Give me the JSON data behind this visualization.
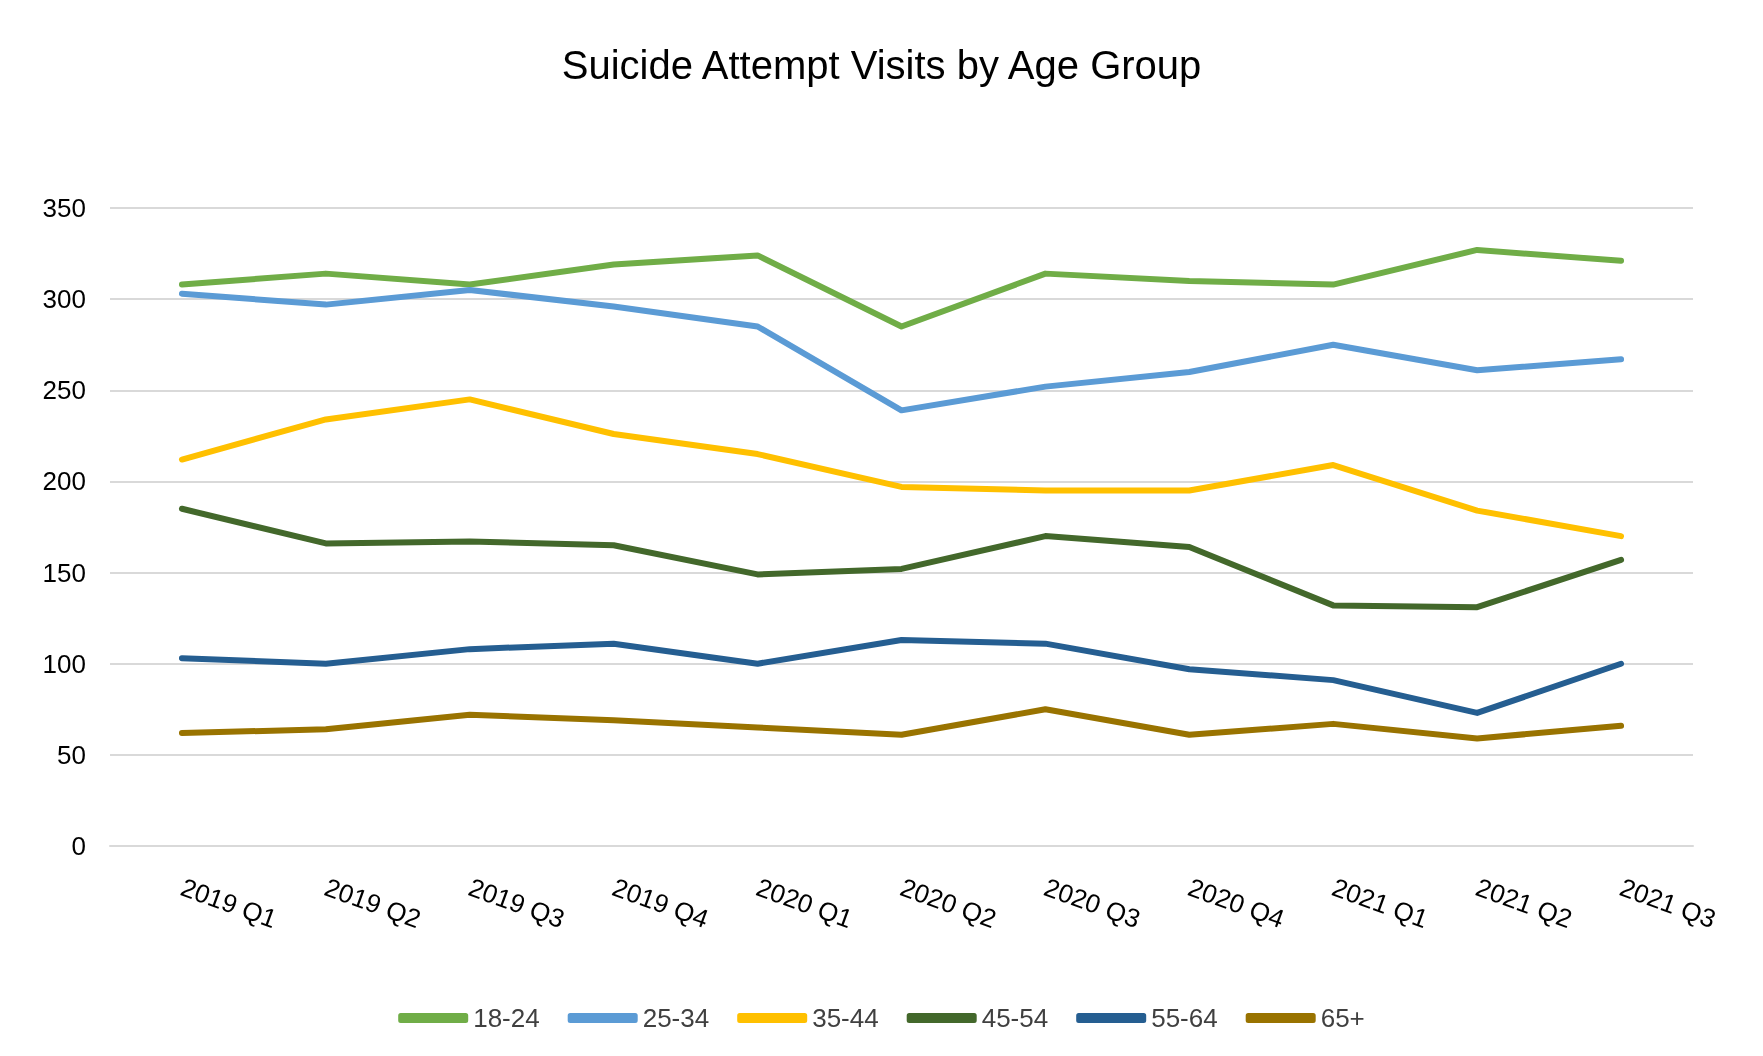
{
  "chart_data": {
    "type": "line",
    "title": "Suicide Attempt Visits by Age Group",
    "categories": [
      "2019 Q1",
      "2019 Q2",
      "2019 Q3",
      "2019 Q4",
      "2020 Q1",
      "2020 Q2",
      "2020 Q3",
      "2020 Q4",
      "2021 Q1",
      "2021 Q2",
      "2021 Q3"
    ],
    "series": [
      {
        "name": "18-24",
        "color": "#70ad47",
        "values": [
          308,
          314,
          308,
          319,
          324,
          285,
          314,
          310,
          308,
          327,
          321
        ]
      },
      {
        "name": "25-34",
        "color": "#5b9bd5",
        "values": [
          303,
          297,
          305,
          296,
          285,
          239,
          252,
          260,
          275,
          261,
          267
        ]
      },
      {
        "name": "35-44",
        "color": "#ffc000",
        "values": [
          212,
          234,
          245,
          226,
          215,
          197,
          195,
          195,
          209,
          184,
          170
        ]
      },
      {
        "name": "45-54",
        "color": "#43682b",
        "values": [
          185,
          166,
          167,
          165,
          149,
          152,
          170,
          164,
          132,
          131,
          157
        ]
      },
      {
        "name": "55-64",
        "color": "#255e91",
        "values": [
          103,
          100,
          108,
          111,
          100,
          113,
          111,
          97,
          91,
          73,
          100
        ]
      },
      {
        "name": "65+",
        "color": "#997300",
        "values": [
          62,
          64,
          72,
          69,
          65,
          61,
          75,
          61,
          67,
          59,
          66
        ]
      }
    ],
    "ylim": [
      0,
      350
    ],
    "yticks": [
      0,
      50,
      100,
      150,
      200,
      250,
      300,
      350
    ],
    "grid": "y",
    "legend": "bottom",
    "marker": "none",
    "line_style": "solid"
  }
}
